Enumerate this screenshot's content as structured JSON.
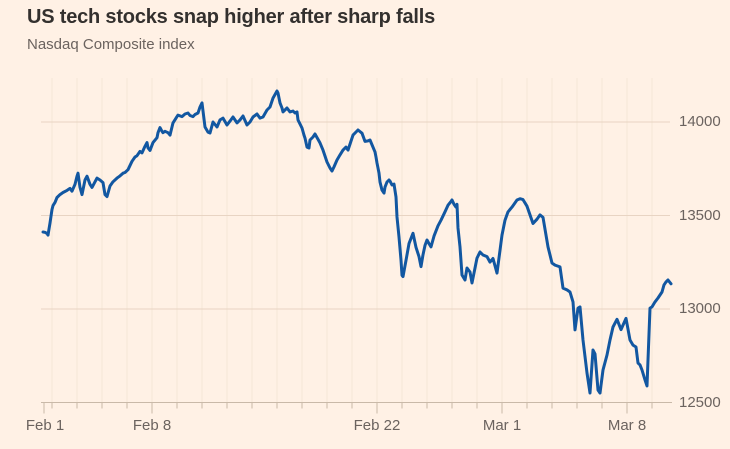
{
  "header": {
    "title": "US tech stocks snap higher after sharp falls",
    "subtitle": "Nasdaq Composite index"
  },
  "colors": {
    "background": "#FFF1E5",
    "title": "#33302E",
    "subtitle": "#6B635F",
    "axis_label": "#6B635F",
    "line": "#1257A1",
    "gridline": "#E8D4C3",
    "day_gridline": "#F5E6D7",
    "axis_line": "#C9B9A8"
  },
  "chart_data": {
    "type": "line",
    "title": "US tech stocks snap higher after sharp falls",
    "subtitle": "Nasdaq Composite index",
    "legend": "none",
    "grid": "horizontal gridlines + faint vertical trading-day boundaries",
    "x_unit": "trading days since Feb 1 (fraction = intraday time)",
    "n_days": 26,
    "x_ticks": [
      {
        "label": "Feb 1",
        "t": 0
      },
      {
        "label": "Feb 8",
        "t": 5
      },
      {
        "label": "Feb 22",
        "t": 14
      },
      {
        "label": "Mar 1",
        "t": 19
      },
      {
        "label": "Mar 8",
        "t": 24
      }
    ],
    "y_ticks": [
      12500,
      13000,
      13500,
      14000
    ],
    "ylim": [
      12500,
      14200
    ],
    "series": [
      {
        "name": "Nasdaq Composite index",
        "points": [
          [
            0.64,
            13412
          ],
          [
            0.72,
            13410
          ],
          [
            0.8,
            13404
          ],
          [
            0.84,
            13395
          ],
          [
            0.92,
            13460
          ],
          [
            1.0,
            13532
          ],
          [
            1.04,
            13553
          ],
          [
            1.12,
            13570
          ],
          [
            1.2,
            13596
          ],
          [
            1.32,
            13612
          ],
          [
            1.44,
            13623
          ],
          [
            1.6,
            13634
          ],
          [
            1.72,
            13645
          ],
          [
            1.8,
            13630
          ],
          [
            1.92,
            13667
          ],
          [
            2.0,
            13710
          ],
          [
            2.04,
            13726
          ],
          [
            2.12,
            13650
          ],
          [
            2.2,
            13612
          ],
          [
            2.32,
            13690
          ],
          [
            2.4,
            13710
          ],
          [
            2.52,
            13667
          ],
          [
            2.6,
            13650
          ],
          [
            2.72,
            13680
          ],
          [
            2.8,
            13700
          ],
          [
            2.92,
            13690
          ],
          [
            3.04,
            13676
          ],
          [
            3.12,
            13612
          ],
          [
            3.2,
            13601
          ],
          [
            3.32,
            13658
          ],
          [
            3.44,
            13680
          ],
          [
            3.6,
            13700
          ],
          [
            3.72,
            13712
          ],
          [
            3.84,
            13726
          ],
          [
            3.92,
            13730
          ],
          [
            4.04,
            13745
          ],
          [
            4.2,
            13790
          ],
          [
            4.32,
            13813
          ],
          [
            4.4,
            13820
          ],
          [
            4.52,
            13843
          ],
          [
            4.6,
            13835
          ],
          [
            4.72,
            13870
          ],
          [
            4.8,
            13890
          ],
          [
            4.84,
            13862
          ],
          [
            4.92,
            13848
          ],
          [
            5.04,
            13890
          ],
          [
            5.2,
            13916
          ],
          [
            5.24,
            13943
          ],
          [
            5.32,
            13970
          ],
          [
            5.4,
            13950
          ],
          [
            5.44,
            13943
          ],
          [
            5.52,
            13950
          ],
          [
            5.64,
            13943
          ],
          [
            5.72,
            13930
          ],
          [
            5.84,
            13995
          ],
          [
            6.0,
            14029
          ],
          [
            6.04,
            14037
          ],
          [
            6.2,
            14029
          ],
          [
            6.32,
            14043
          ],
          [
            6.44,
            14048
          ],
          [
            6.52,
            14035
          ],
          [
            6.64,
            14029
          ],
          [
            6.72,
            14040
          ],
          [
            6.84,
            14048
          ],
          [
            6.92,
            14080
          ],
          [
            7.0,
            14102
          ],
          [
            7.12,
            13973
          ],
          [
            7.24,
            13946
          ],
          [
            7.32,
            13941
          ],
          [
            7.44,
            14000
          ],
          [
            7.6,
            13973
          ],
          [
            7.72,
            14011
          ],
          [
            7.84,
            14021
          ],
          [
            8.0,
            13984
          ],
          [
            8.12,
            14005
          ],
          [
            8.24,
            14027
          ],
          [
            8.4,
            13995
          ],
          [
            8.52,
            14011
          ],
          [
            8.64,
            14032
          ],
          [
            8.8,
            13984
          ],
          [
            8.92,
            14000
          ],
          [
            9.04,
            14027
          ],
          [
            9.2,
            14043
          ],
          [
            9.32,
            14021
          ],
          [
            9.44,
            14027
          ],
          [
            9.6,
            14064
          ],
          [
            9.72,
            14080
          ],
          [
            9.84,
            14128
          ],
          [
            10.0,
            14166
          ],
          [
            10.04,
            14155
          ],
          [
            10.12,
            14102
          ],
          [
            10.2,
            14075
          ],
          [
            10.24,
            14054
          ],
          [
            10.4,
            14075
          ],
          [
            10.52,
            14054
          ],
          [
            10.64,
            14059
          ],
          [
            10.72,
            14048
          ],
          [
            10.8,
            14054
          ],
          [
            10.84,
            14011
          ],
          [
            11.0,
            13968
          ],
          [
            11.08,
            13930
          ],
          [
            11.12,
            13914
          ],
          [
            11.2,
            13866
          ],
          [
            11.28,
            13861
          ],
          [
            11.32,
            13904
          ],
          [
            11.44,
            13920
          ],
          [
            11.52,
            13936
          ],
          [
            11.72,
            13888
          ],
          [
            11.84,
            13850
          ],
          [
            12.0,
            13786
          ],
          [
            12.12,
            13754
          ],
          [
            12.2,
            13738
          ],
          [
            12.28,
            13760
          ],
          [
            12.4,
            13797
          ],
          [
            12.52,
            13824
          ],
          [
            12.64,
            13850
          ],
          [
            12.76,
            13866
          ],
          [
            12.84,
            13850
          ],
          [
            13.04,
            13930
          ],
          [
            13.24,
            13957
          ],
          [
            13.4,
            13940
          ],
          [
            13.52,
            13896
          ],
          [
            13.64,
            13899
          ],
          [
            13.72,
            13904
          ],
          [
            13.92,
            13840
          ],
          [
            13.96,
            13813
          ],
          [
            14.0,
            13781
          ],
          [
            14.08,
            13727
          ],
          [
            14.12,
            13679
          ],
          [
            14.2,
            13636
          ],
          [
            14.28,
            13620
          ],
          [
            14.32,
            13652
          ],
          [
            14.4,
            13679
          ],
          [
            14.48,
            13690
          ],
          [
            14.52,
            13684
          ],
          [
            14.6,
            13663
          ],
          [
            14.68,
            13668
          ],
          [
            14.76,
            13599
          ],
          [
            14.8,
            13492
          ],
          [
            14.88,
            13385
          ],
          [
            14.96,
            13262
          ],
          [
            15.0,
            13180
          ],
          [
            15.04,
            13173
          ],
          [
            15.16,
            13260
          ],
          [
            15.28,
            13350
          ],
          [
            15.44,
            13405
          ],
          [
            15.56,
            13330
          ],
          [
            15.68,
            13280
          ],
          [
            15.76,
            13227
          ],
          [
            15.84,
            13290
          ],
          [
            15.92,
            13340
          ],
          [
            16.0,
            13369
          ],
          [
            16.08,
            13350
          ],
          [
            16.16,
            13332
          ],
          [
            16.28,
            13390
          ],
          [
            16.44,
            13445
          ],
          [
            16.56,
            13475
          ],
          [
            16.72,
            13520
          ],
          [
            16.84,
            13555
          ],
          [
            16.96,
            13575
          ],
          [
            17.0,
            13583
          ],
          [
            17.08,
            13560
          ],
          [
            17.16,
            13545
          ],
          [
            17.2,
            13560
          ],
          [
            17.24,
            13433
          ],
          [
            17.32,
            13332
          ],
          [
            17.4,
            13182
          ],
          [
            17.52,
            13155
          ],
          [
            17.6,
            13219
          ],
          [
            17.72,
            13198
          ],
          [
            17.8,
            13139
          ],
          [
            18.0,
            13272
          ],
          [
            18.12,
            13305
          ],
          [
            18.24,
            13289
          ],
          [
            18.4,
            13280
          ],
          [
            18.52,
            13251
          ],
          [
            18.64,
            13270
          ],
          [
            18.8,
            13192
          ],
          [
            19.0,
            13395
          ],
          [
            19.12,
            13475
          ],
          [
            19.24,
            13519
          ],
          [
            19.4,
            13545
          ],
          [
            19.6,
            13583
          ],
          [
            19.72,
            13590
          ],
          [
            19.84,
            13585
          ],
          [
            20.0,
            13550
          ],
          [
            20.12,
            13503
          ],
          [
            20.24,
            13457
          ],
          [
            20.4,
            13480
          ],
          [
            20.52,
            13503
          ],
          [
            20.64,
            13490
          ],
          [
            20.84,
            13332
          ],
          [
            21.0,
            13246
          ],
          [
            21.12,
            13235
          ],
          [
            21.32,
            13225
          ],
          [
            21.44,
            13112
          ],
          [
            21.6,
            13102
          ],
          [
            21.72,
            13091
          ],
          [
            21.84,
            13038
          ],
          [
            21.92,
            12888
          ],
          [
            22.04,
            13005
          ],
          [
            22.12,
            13011
          ],
          [
            22.24,
            12834
          ],
          [
            22.4,
            12658
          ],
          [
            22.52,
            12551
          ],
          [
            22.64,
            12781
          ],
          [
            22.72,
            12760
          ],
          [
            22.84,
            12567
          ],
          [
            22.92,
            12551
          ],
          [
            23.04,
            12674
          ],
          [
            23.2,
            12754
          ],
          [
            23.32,
            12834
          ],
          [
            23.44,
            12904
          ],
          [
            23.6,
            12945
          ],
          [
            23.76,
            12890
          ],
          [
            23.96,
            12950
          ],
          [
            24.12,
            12834
          ],
          [
            24.24,
            12807
          ],
          [
            24.36,
            12797
          ],
          [
            24.44,
            12711
          ],
          [
            24.52,
            12701
          ],
          [
            24.6,
            12674
          ],
          [
            24.72,
            12621
          ],
          [
            24.8,
            12589
          ],
          [
            24.92,
            13005
          ],
          [
            25.0,
            13011
          ],
          [
            25.12,
            13038
          ],
          [
            25.24,
            13059
          ],
          [
            25.4,
            13091
          ],
          [
            25.48,
            13129
          ],
          [
            25.56,
            13145
          ],
          [
            25.64,
            13155
          ],
          [
            25.76,
            13135
          ]
        ]
      }
    ]
  }
}
